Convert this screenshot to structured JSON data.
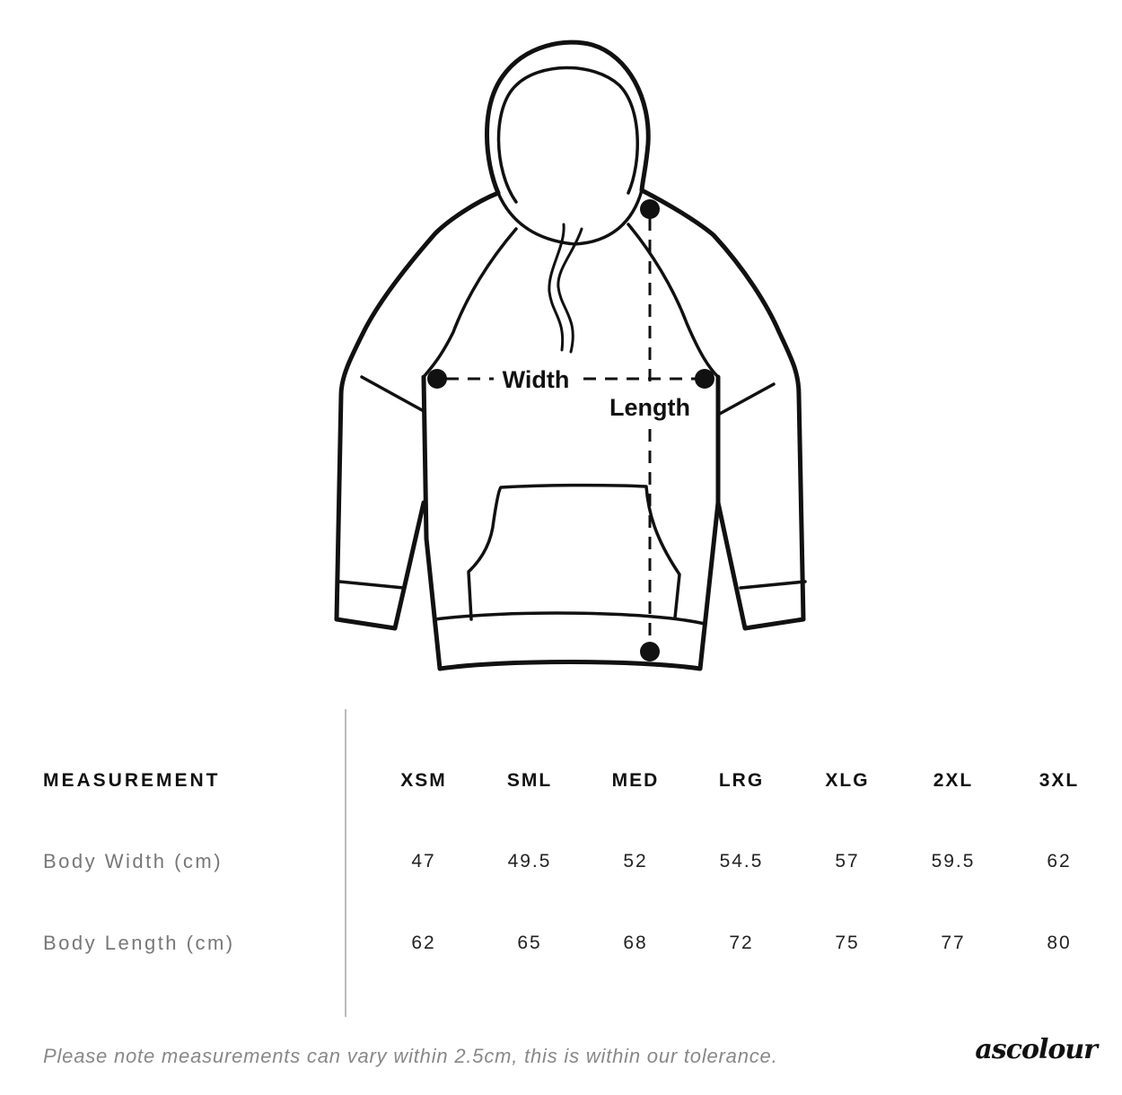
{
  "diagram": {
    "width_label": "Width",
    "length_label": "Length"
  },
  "table": {
    "header_label": "MEASUREMENT",
    "sizes": [
      "XSM",
      "SML",
      "MED",
      "LRG",
      "XLG",
      "2XL",
      "3XL"
    ],
    "rows": [
      {
        "label": "Body Width (cm)",
        "values": [
          "47",
          "49.5",
          "52",
          "54.5",
          "57",
          "59.5",
          "62"
        ]
      },
      {
        "label": "Body Length (cm)",
        "values": [
          "62",
          "65",
          "68",
          "72",
          "75",
          "77",
          "80"
        ]
      }
    ]
  },
  "footer": {
    "note": "Please note measurements can vary within 2.5cm, this is within our tolerance.",
    "logo": "ascolour"
  }
}
